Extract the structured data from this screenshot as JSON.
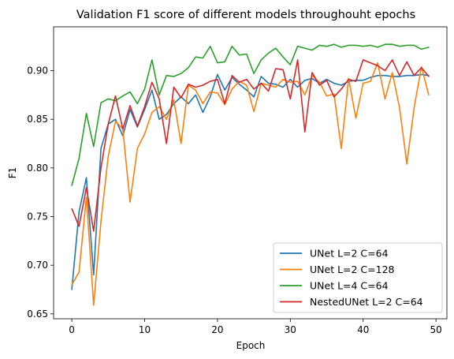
{
  "chart_data": {
    "type": "line",
    "title": "Validation F1 score of different models throughouht epochs",
    "xlabel": "Epoch",
    "ylabel": "F1",
    "xlim": [
      -2.5,
      51.5
    ],
    "ylim": [
      0.645,
      0.945
    ],
    "xticks": [
      0,
      10,
      20,
      30,
      40,
      50
    ],
    "yticks": [
      0.65,
      0.7,
      0.75,
      0.8,
      0.85,
      0.9
    ],
    "grid": false,
    "legend_position": "lower-right",
    "x": [
      0,
      1,
      2,
      3,
      4,
      5,
      6,
      7,
      8,
      9,
      10,
      11,
      12,
      13,
      14,
      15,
      16,
      17,
      18,
      19,
      20,
      21,
      22,
      23,
      24,
      25,
      26,
      27,
      28,
      29,
      30,
      31,
      32,
      33,
      34,
      35,
      36,
      37,
      38,
      39,
      40,
      41,
      42,
      43,
      44,
      45,
      46,
      47,
      48,
      49
    ],
    "series": [
      {
        "name": "UNet L=2 C=64",
        "color": "#1f77b4",
        "values": [
          0.675,
          0.755,
          0.79,
          0.69,
          0.82,
          0.845,
          0.85,
          0.833,
          0.86,
          0.842,
          0.86,
          0.88,
          0.85,
          0.855,
          0.866,
          0.873,
          0.866,
          0.875,
          0.857,
          0.873,
          0.896,
          0.88,
          0.893,
          0.886,
          0.88,
          0.873,
          0.894,
          0.887,
          0.886,
          0.883,
          0.891,
          0.883,
          0.89,
          0.892,
          0.887,
          0.891,
          0.887,
          0.885,
          0.889,
          0.89,
          0.89,
          0.893,
          0.895,
          0.895,
          0.894,
          0.894,
          0.895,
          0.895,
          0.896,
          0.895
        ]
      },
      {
        "name": "UNet L=2 C=128",
        "color": "#ff7f0e",
        "values": [
          0.68,
          0.693,
          0.77,
          0.659,
          0.745,
          0.812,
          0.848,
          0.84,
          0.765,
          0.82,
          0.835,
          0.857,
          0.863,
          0.85,
          0.87,
          0.825,
          0.885,
          0.88,
          0.866,
          0.878,
          0.877,
          0.865,
          0.881,
          0.889,
          0.885,
          0.858,
          0.887,
          0.885,
          0.883,
          0.891,
          0.888,
          0.889,
          0.875,
          0.895,
          0.888,
          0.874,
          0.876,
          0.82,
          0.892,
          0.851,
          0.887,
          0.889,
          0.908,
          0.871,
          0.898,
          0.862,
          0.804,
          0.862,
          0.904,
          0.875
        ]
      },
      {
        "name": "UNet L=4 C=64",
        "color": "#2ca02c",
        "values": [
          0.782,
          0.81,
          0.856,
          0.822,
          0.867,
          0.871,
          0.869,
          0.874,
          0.878,
          0.866,
          0.881,
          0.911,
          0.875,
          0.895,
          0.894,
          0.897,
          0.903,
          0.914,
          0.913,
          0.925,
          0.908,
          0.909,
          0.925,
          0.916,
          0.917,
          0.897,
          0.911,
          0.918,
          0.923,
          0.914,
          0.906,
          0.925,
          0.923,
          0.921,
          0.926,
          0.925,
          0.927,
          0.924,
          0.926,
          0.926,
          0.925,
          0.926,
          0.924,
          0.927,
          0.927,
          0.925,
          0.926,
          0.926,
          0.922,
          0.924
        ]
      },
      {
        "name": "NestedUNet L=2 C=64",
        "color": "#d62728",
        "values": [
          0.758,
          0.74,
          0.78,
          0.735,
          0.8,
          0.845,
          0.874,
          0.84,
          0.864,
          0.843,
          0.863,
          0.888,
          0.871,
          0.825,
          0.883,
          0.872,
          0.886,
          0.883,
          0.885,
          0.889,
          0.891,
          0.866,
          0.895,
          0.888,
          0.891,
          0.881,
          0.887,
          0.879,
          0.902,
          0.901,
          0.871,
          0.911,
          0.837,
          0.898,
          0.885,
          0.89,
          0.873,
          0.881,
          0.891,
          0.889,
          0.911,
          0.908,
          0.905,
          0.9,
          0.911,
          0.895,
          0.909,
          0.895,
          0.903,
          0.894
        ]
      }
    ]
  }
}
